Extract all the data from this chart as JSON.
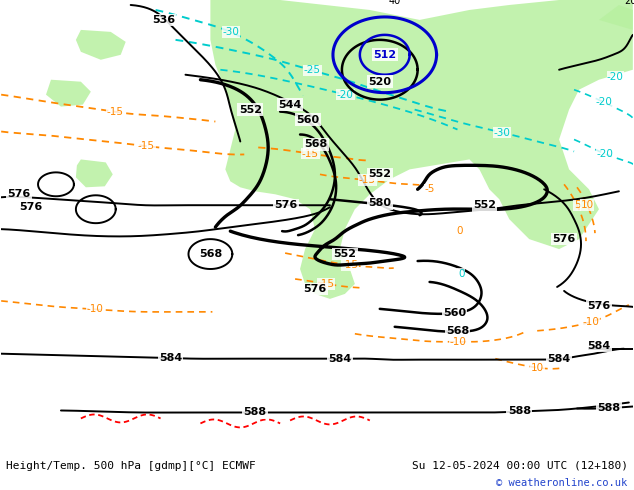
{
  "title_left": "Height/Temp. 500 hPa [gdmp][°C] ECMWF",
  "title_right": "Su 12-05-2024 00:00 UTC (12+180)",
  "copyright": "© weatheronline.co.uk",
  "bg_color": "#e8e8e8",
  "green_color": "#b8f0a0",
  "white_color": "#ffffff",
  "black": "#000000",
  "cyan": "#00cccc",
  "orange": "#ff8800",
  "red": "#ff0000",
  "blue": "#0055ff",
  "blue_dark": "#0000cc",
  "figsize": [
    6.34,
    4.9
  ],
  "dpi": 100
}
